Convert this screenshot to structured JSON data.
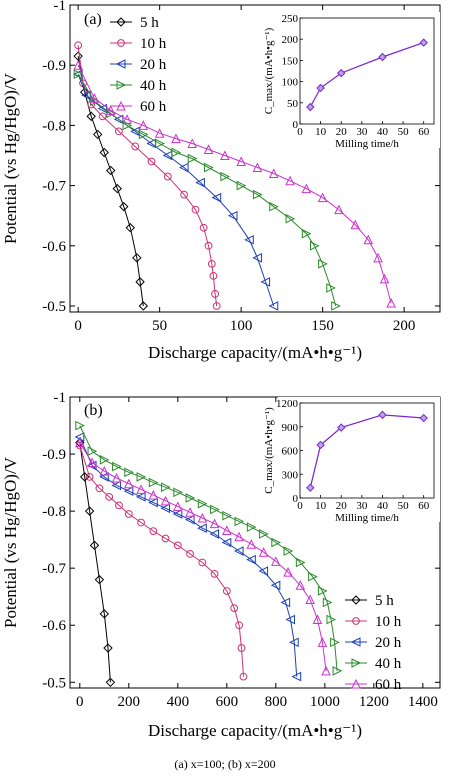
{
  "caption": "(a) x=100; (b) x=200",
  "chart_data": [
    {
      "type": "line",
      "panel_label": "(a)",
      "xlabel": "Discharge capacity/(mA•h•g⁻¹)",
      "ylabel": "Potential (vs Hg/HgO)/V",
      "xlim": [
        -5,
        222
      ],
      "ylim": [
        -1.0,
        -0.49
      ],
      "xticks": [
        0,
        50,
        100,
        150,
        200
      ],
      "yticks": [
        -1.0,
        -0.9,
        -0.8,
        -0.7,
        -0.6,
        -0.5
      ],
      "legend_position": "top-left",
      "series": [
        {
          "name": "5 h",
          "color": "#000000",
          "marker": "diamond",
          "x": [
            0,
            4,
            8,
            12,
            16,
            20,
            24,
            28,
            32,
            36,
            38,
            40
          ],
          "y": [
            -0.915,
            -0.855,
            -0.815,
            -0.785,
            -0.755,
            -0.725,
            -0.695,
            -0.665,
            -0.63,
            -0.58,
            -0.54,
            -0.5
          ]
        },
        {
          "name": "10 h",
          "color": "#cc3377",
          "marker": "circle",
          "x": [
            0,
            3,
            8,
            15,
            25,
            35,
            45,
            55,
            65,
            72,
            77,
            80,
            82,
            83,
            84,
            85
          ],
          "y": [
            -0.933,
            -0.87,
            -0.835,
            -0.815,
            -0.79,
            -0.765,
            -0.74,
            -0.715,
            -0.685,
            -0.66,
            -0.63,
            -0.6,
            -0.57,
            -0.55,
            -0.52,
            -0.5
          ]
        },
        {
          "name": "20 h",
          "color": "#1a3eb8",
          "marker": "triangle-left",
          "x": [
            0,
            5,
            15,
            25,
            35,
            45,
            55,
            65,
            75,
            85,
            95,
            105,
            110,
            115,
            120
          ],
          "y": [
            -0.885,
            -0.85,
            -0.828,
            -0.81,
            -0.79,
            -0.77,
            -0.75,
            -0.73,
            -0.705,
            -0.68,
            -0.65,
            -0.61,
            -0.58,
            -0.54,
            -0.5
          ]
        },
        {
          "name": "40 h",
          "color": "#2a8a2a",
          "marker": "triangle-right",
          "x": [
            0,
            10,
            20,
            30,
            40,
            50,
            60,
            70,
            80,
            90,
            100,
            110,
            120,
            130,
            140,
            145,
            150,
            155,
            158
          ],
          "y": [
            -0.885,
            -0.84,
            -0.82,
            -0.8,
            -0.785,
            -0.77,
            -0.755,
            -0.745,
            -0.73,
            -0.715,
            -0.7,
            -0.685,
            -0.665,
            -0.645,
            -0.62,
            -0.6,
            -0.57,
            -0.53,
            -0.5
          ]
        },
        {
          "name": "60 h",
          "color": "#cc33cc",
          "marker": "triangle-up",
          "x": [
            0,
            10,
            20,
            30,
            40,
            50,
            60,
            70,
            80,
            90,
            100,
            110,
            120,
            130,
            140,
            150,
            160,
            170,
            178,
            184,
            188,
            192
          ],
          "y": [
            -0.9,
            -0.845,
            -0.825,
            -0.81,
            -0.8,
            -0.787,
            -0.778,
            -0.77,
            -0.76,
            -0.75,
            -0.74,
            -0.73,
            -0.72,
            -0.708,
            -0.695,
            -0.68,
            -0.66,
            -0.635,
            -0.61,
            -0.58,
            -0.545,
            -0.505
          ]
        }
      ],
      "inset": {
        "type": "line",
        "xlabel": "Milling time/h",
        "ylabel": "C_max/(mA•h•g⁻¹)",
        "xlim": [
          0,
          65
        ],
        "ylim": [
          0,
          250
        ],
        "xticks": [
          0,
          10,
          20,
          30,
          40,
          50,
          60
        ],
        "yticks": [
          0,
          50,
          100,
          150,
          200,
          250
        ],
        "color": "#7a22cc",
        "marker": "diamond",
        "x": [
          5,
          10,
          20,
          40,
          60
        ],
        "y": [
          40,
          85,
          120,
          158,
          192
        ]
      }
    },
    {
      "type": "line",
      "panel_label": "(b)",
      "xlabel": "Discharge capacity/(mA•h•g⁻¹)",
      "ylabel": "Potential (vs Hg/HgO)/V",
      "xlim": [
        -40,
        1470
      ],
      "ylim": [
        -1.0,
        -0.49
      ],
      "xticks": [
        0,
        200,
        400,
        600,
        800,
        1000,
        1200,
        1400
      ],
      "yticks": [
        -1.0,
        -0.9,
        -0.8,
        -0.7,
        -0.6,
        -0.5
      ],
      "legend_position": "bottom-right",
      "series": [
        {
          "name": "5 h",
          "color": "#000000",
          "marker": "diamond",
          "x": [
            0,
            20,
            40,
            60,
            80,
            100,
            115,
            125
          ],
          "y": [
            -0.92,
            -0.86,
            -0.8,
            -0.74,
            -0.68,
            -0.62,
            -0.56,
            -0.5
          ]
        },
        {
          "name": "10 h",
          "color": "#cc3377",
          "marker": "circle",
          "x": [
            0,
            40,
            80,
            120,
            160,
            200,
            250,
            300,
            350,
            400,
            450,
            500,
            550,
            600,
            630,
            650,
            660,
            668
          ],
          "y": [
            -0.915,
            -0.86,
            -0.84,
            -0.825,
            -0.81,
            -0.795,
            -0.78,
            -0.765,
            -0.752,
            -0.74,
            -0.725,
            -0.71,
            -0.69,
            -0.66,
            -0.63,
            -0.6,
            -0.56,
            -0.51
          ]
        },
        {
          "name": "20 h",
          "color": "#1a3eb8",
          "marker": "triangle-left",
          "x": [
            0,
            50,
            100,
            150,
            200,
            250,
            300,
            350,
            400,
            450,
            500,
            550,
            600,
            650,
            700,
            750,
            800,
            840,
            860,
            875,
            885
          ],
          "y": [
            -0.93,
            -0.88,
            -0.86,
            -0.845,
            -0.835,
            -0.825,
            -0.815,
            -0.805,
            -0.795,
            -0.785,
            -0.77,
            -0.76,
            -0.745,
            -0.73,
            -0.715,
            -0.695,
            -0.67,
            -0.64,
            -0.61,
            -0.57,
            -0.51
          ]
        },
        {
          "name": "40 h",
          "color": "#2a8a2a",
          "marker": "triangle-right",
          "x": [
            0,
            50,
            100,
            150,
            200,
            250,
            300,
            350,
            400,
            450,
            500,
            550,
            600,
            650,
            700,
            750,
            800,
            850,
            900,
            950,
            990,
            1010,
            1025,
            1040,
            1050
          ],
          "y": [
            -0.95,
            -0.905,
            -0.89,
            -0.878,
            -0.868,
            -0.86,
            -0.85,
            -0.842,
            -0.833,
            -0.823,
            -0.813,
            -0.803,
            -0.792,
            -0.782,
            -0.772,
            -0.76,
            -0.745,
            -0.73,
            -0.71,
            -0.685,
            -0.66,
            -0.64,
            -0.61,
            -0.57,
            -0.52
          ]
        },
        {
          "name": "60 h",
          "color": "#cc33cc",
          "marker": "triangle-up",
          "x": [
            0,
            50,
            100,
            150,
            200,
            250,
            300,
            350,
            400,
            450,
            500,
            550,
            600,
            650,
            700,
            750,
            800,
            850,
            900,
            940,
            970,
            990,
            1005
          ],
          "y": [
            -0.92,
            -0.885,
            -0.87,
            -0.858,
            -0.848,
            -0.838,
            -0.828,
            -0.818,
            -0.808,
            -0.798,
            -0.788,
            -0.778,
            -0.766,
            -0.755,
            -0.742,
            -0.728,
            -0.712,
            -0.693,
            -0.67,
            -0.645,
            -0.61,
            -0.57,
            -0.52
          ]
        }
      ],
      "inset": {
        "type": "line",
        "xlabel": "Milling time/h",
        "ylabel": "C_max/(mA•h•g⁻¹)",
        "xlim": [
          0,
          65
        ],
        "ylim": [
          0,
          1200
        ],
        "xticks": [
          0,
          10,
          20,
          30,
          40,
          50,
          60
        ],
        "yticks": [
          0,
          300,
          600,
          900,
          1200
        ],
        "color": "#7a22cc",
        "marker": "diamond",
        "x": [
          5,
          10,
          20,
          40,
          60
        ],
        "y": [
          130,
          670,
          890,
          1050,
          1010
        ]
      }
    }
  ]
}
